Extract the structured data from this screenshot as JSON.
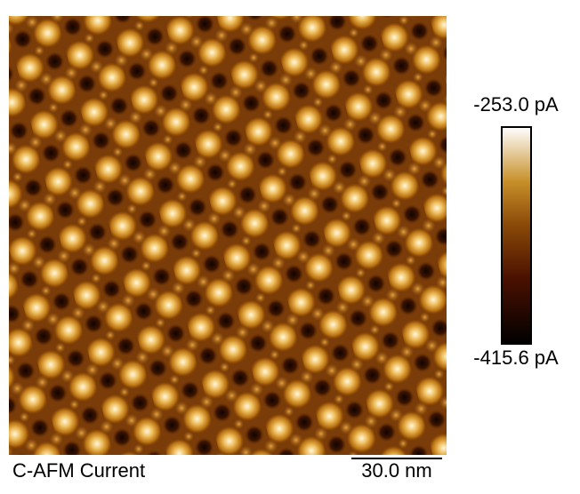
{
  "image": {
    "caption": "C-AFM Current",
    "scale_bar": "30.0 nm"
  },
  "colorbar": {
    "max_label": "-253.0 pA",
    "min_label": "-415.6 pA"
  }
}
